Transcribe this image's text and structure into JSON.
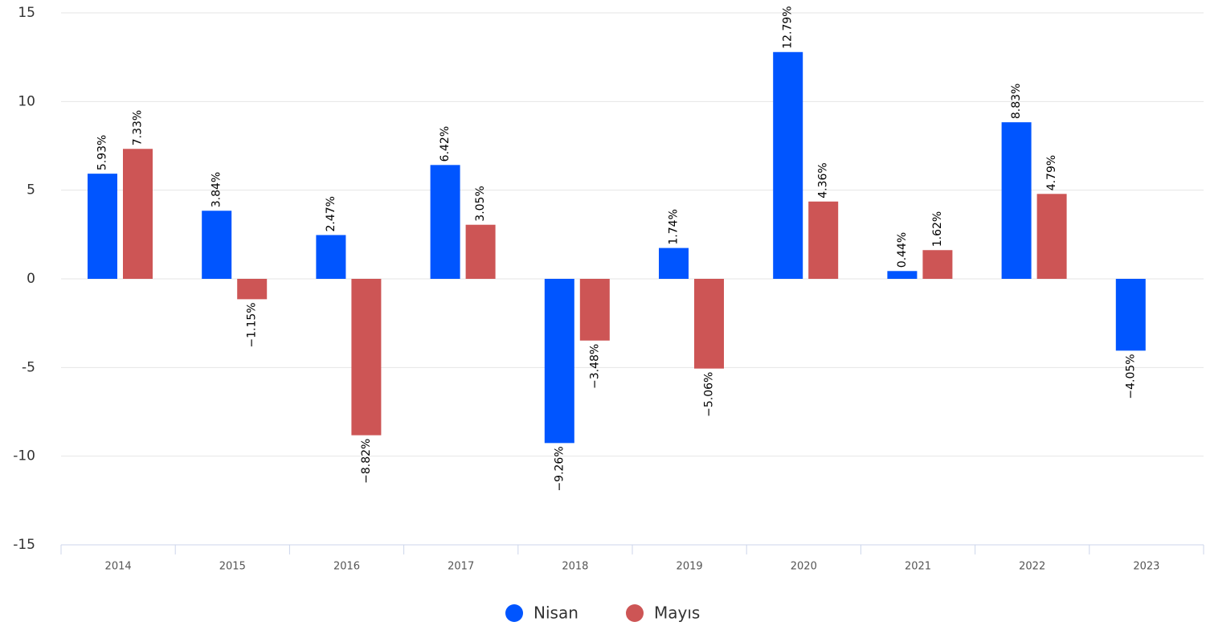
{
  "chart_data": {
    "type": "bar",
    "categories": [
      "2014",
      "2015",
      "2016",
      "2017",
      "2018",
      "2019",
      "2020",
      "2021",
      "2022",
      "2023"
    ],
    "series": [
      {
        "name": "Nisan",
        "color": "#0055ff",
        "values": [
          5.93,
          3.84,
          2.47,
          6.42,
          -9.26,
          1.74,
          12.79,
          0.44,
          8.83,
          -4.05
        ],
        "value_labels": [
          "5.93%",
          "3.84%",
          "2.47%",
          "6.42%",
          "−9.26%",
          "1.74%",
          "12.79%",
          "0.44%",
          "8.83%",
          "−4.05%"
        ]
      },
      {
        "name": "Mayıs",
        "color": "#cd5555",
        "values": [
          7.33,
          -1.15,
          -8.82,
          3.05,
          -3.48,
          -5.06,
          4.36,
          1.62,
          4.79,
          null
        ],
        "value_labels": [
          "7.33%",
          "−1.15%",
          "−8.82%",
          "3.05%",
          "−3.48%",
          "−5.06%",
          "4.36%",
          "1.62%",
          "4.79%",
          null
        ]
      }
    ],
    "ylim": [
      -15,
      15
    ],
    "yticks": [
      -15,
      -10,
      -5,
      0,
      5,
      10,
      15
    ],
    "grid": true,
    "legend": "bottom"
  }
}
